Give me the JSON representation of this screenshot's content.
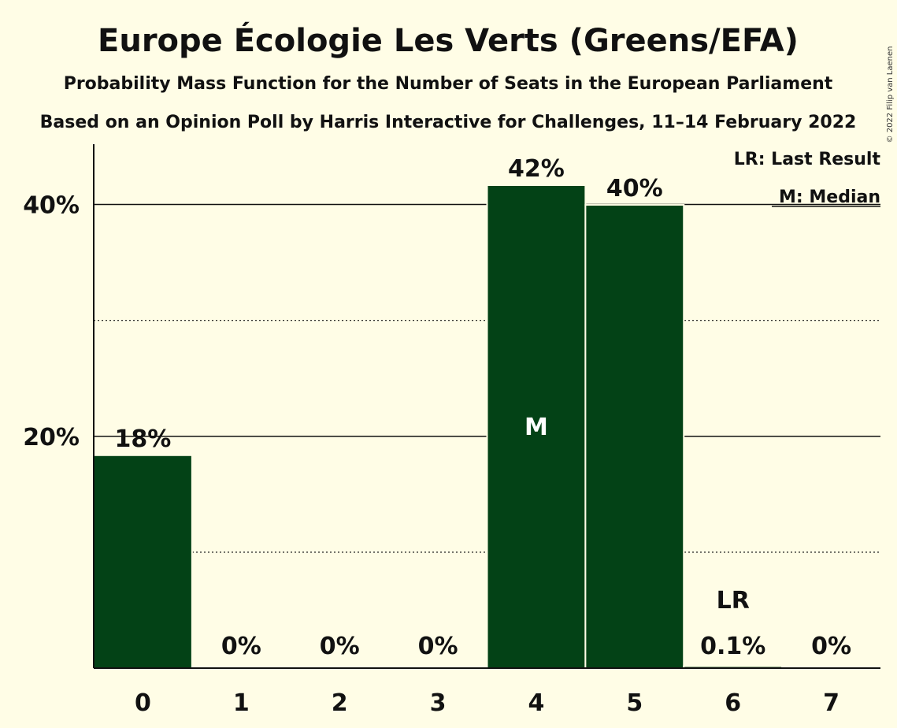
{
  "title": "Europe Écologie Les Verts (Greens/EFA)",
  "subtitle1": "Probability Mass Function for the Number of Seats in the European Parliament",
  "subtitle2": "Based on an Opinion Poll by Harris Interactive for Challenges, 11–14 February 2022",
  "copyright": "© 2022 Filip van Laenen",
  "legend": {
    "last_result": "LR: Last Result",
    "median": "M: Median"
  },
  "colors": {
    "bar": "#034216",
    "background": "#fffde6",
    "text": "#111111"
  },
  "chart_data": {
    "type": "bar",
    "categories": [
      "0",
      "1",
      "2",
      "3",
      "4",
      "5",
      "6",
      "7"
    ],
    "values": [
      18.3,
      0,
      0,
      0,
      41.6,
      39.9,
      0.1,
      0
    ],
    "data_labels": [
      "18%",
      "0%",
      "0%",
      "0%",
      "42%",
      "40%",
      "0.1%",
      "0%"
    ],
    "ylim": [
      0,
      45
    ],
    "yticks": [
      {
        "value": 20,
        "label": "20%"
      },
      {
        "value": 40,
        "label": "40%"
      }
    ],
    "dotted_gridlines": [
      10,
      30
    ],
    "median_index": 4,
    "median_marker": "M",
    "last_result_index": 6,
    "last_result_marker": "LR",
    "xlabel": "",
    "ylabel": ""
  }
}
